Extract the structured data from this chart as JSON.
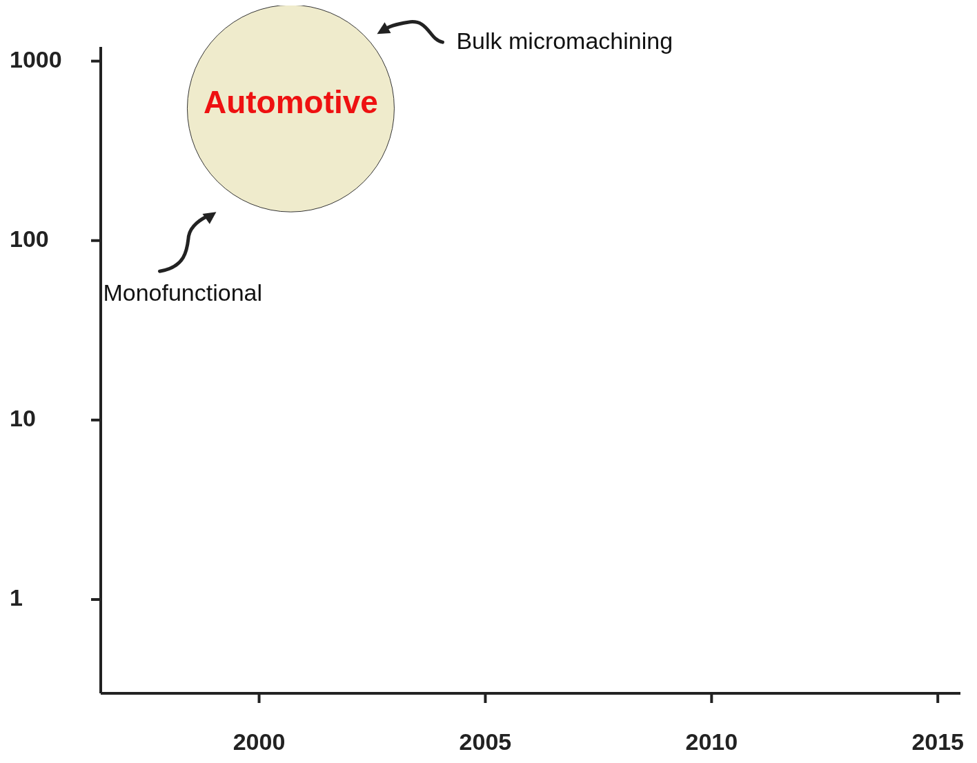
{
  "chart_data": {
    "type": "bubble",
    "x": [
      2000.7
    ],
    "series": [
      {
        "name": "Automotive",
        "color": "#efebcc",
        "values": [
          545
        ],
        "sizes": [
          1
        ]
      }
    ],
    "xlim": [
      1996.5,
      2015.5
    ],
    "xticks": [
      2000,
      2005,
      2010,
      2015
    ],
    "ylim": [
      0.3,
      1200
    ],
    "yticks": [
      1,
      10,
      100,
      1000
    ],
    "log": "y",
    "grid": false,
    "annotations": [
      "Bulk micromachining",
      "Monofunctional"
    ]
  }
}
